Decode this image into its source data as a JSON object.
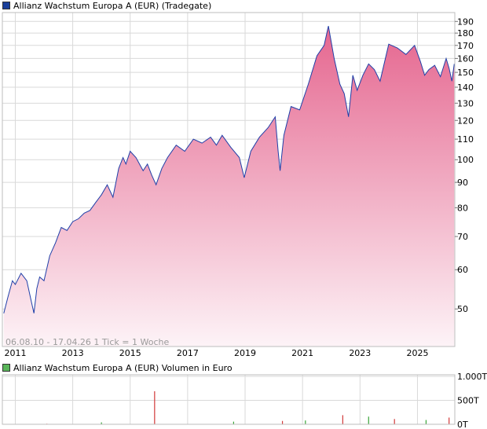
{
  "legend": {
    "price": "Allianz Wachstum Europa A (EUR) (Tradegate)",
    "volume": "Allianz Wachstum Europa A (EUR) Volumen in Euro"
  },
  "colors": {
    "price_line": "#1f3fa8",
    "price_swatch": "#1a3f9a",
    "volume_swatch": "#59b559",
    "area_top": "#e5668f",
    "area_bottom": "#fdf3f7",
    "grid": "#d9d9d9",
    "volume_up": "#3aa53a",
    "volume_down": "#d23a3a"
  },
  "info_text": "06.08.10 - 17.04.26   1 Tick = 1 Woche",
  "chart_data": [
    {
      "type": "area",
      "scale": "log",
      "ylim": [
        42,
        198
      ],
      "xlim": [
        2010.55,
        2026.3
      ],
      "y_ticks": [
        50,
        60,
        70,
        80,
        90,
        100,
        110,
        120,
        130,
        140,
        150,
        160,
        170,
        180,
        190
      ],
      "x_ticks": [
        "2011",
        "2013",
        "2015",
        "2017",
        "2019",
        "2021",
        "2023",
        "2025"
      ],
      "x_tick_values": [
        2011,
        2013,
        2015,
        2017,
        2019,
        2021,
        2023,
        2025
      ],
      "grid": true,
      "series": [
        {
          "x": [
            2010.6,
            2010.75,
            2010.9,
            2011.0,
            2011.2,
            2011.4,
            2011.55,
            2011.65,
            2011.75,
            2011.85,
            2012.0,
            2012.2,
            2012.4,
            2012.6,
            2012.8,
            2013.0,
            2013.2,
            2013.4,
            2013.6,
            2013.8,
            2014.0,
            2014.2,
            2014.4,
            2014.6,
            2014.75,
            2014.85,
            2015.0,
            2015.2,
            2015.45,
            2015.6,
            2015.75,
            2015.9,
            2016.1,
            2016.3,
            2016.6,
            2016.9,
            2017.2,
            2017.5,
            2017.8,
            2018.0,
            2018.2,
            2018.5,
            2018.8,
            2018.97,
            2019.2,
            2019.5,
            2019.8,
            2020.05,
            2020.15,
            2020.22,
            2020.35,
            2020.6,
            2020.9,
            2021.2,
            2021.5,
            2021.75,
            2021.9,
            2022.1,
            2022.3,
            2022.45,
            2022.6,
            2022.75,
            2022.9,
            2023.1,
            2023.3,
            2023.5,
            2023.7,
            2023.85,
            2024.0,
            2024.3,
            2024.6,
            2024.9,
            2025.1,
            2025.25,
            2025.4,
            2025.6,
            2025.8,
            2026.0,
            2026.1,
            2026.2,
            2026.28
          ],
          "y": [
            49,
            53,
            57,
            56,
            59,
            57,
            52,
            49,
            55,
            58,
            57,
            64,
            68,
            73,
            72,
            75,
            76,
            78,
            79,
            82,
            85,
            89,
            84,
            96,
            101,
            98,
            104,
            101,
            95,
            98,
            93,
            89,
            96,
            101,
            107,
            104,
            110,
            108,
            111,
            107,
            112,
            106,
            101,
            92,
            104,
            111,
            116,
            122,
            104,
            95,
            112,
            128,
            126,
            142,
            162,
            170,
            186,
            160,
            142,
            136,
            122,
            148,
            138,
            148,
            156,
            152,
            144,
            157,
            171,
            168,
            163,
            170,
            158,
            148,
            152,
            155,
            147,
            160,
            153,
            144,
            156
          ]
        }
      ]
    },
    {
      "type": "bar",
      "y_ticks": [
        "1.000T",
        "500T",
        "0T"
      ],
      "ylim": [
        0,
        1000
      ],
      "series": [
        {
          "name": "Volumen in Euro",
          "x": [
            2012.1,
            2014.0,
            2015.85,
            2018.6,
            2020.3,
            2021.1,
            2022.4,
            2023.3,
            2024.2,
            2025.3,
            2026.1
          ],
          "values": [
            12,
            40,
            690,
            55,
            70,
            80,
            190,
            160,
            110,
            90,
            140
          ]
        }
      ]
    }
  ]
}
